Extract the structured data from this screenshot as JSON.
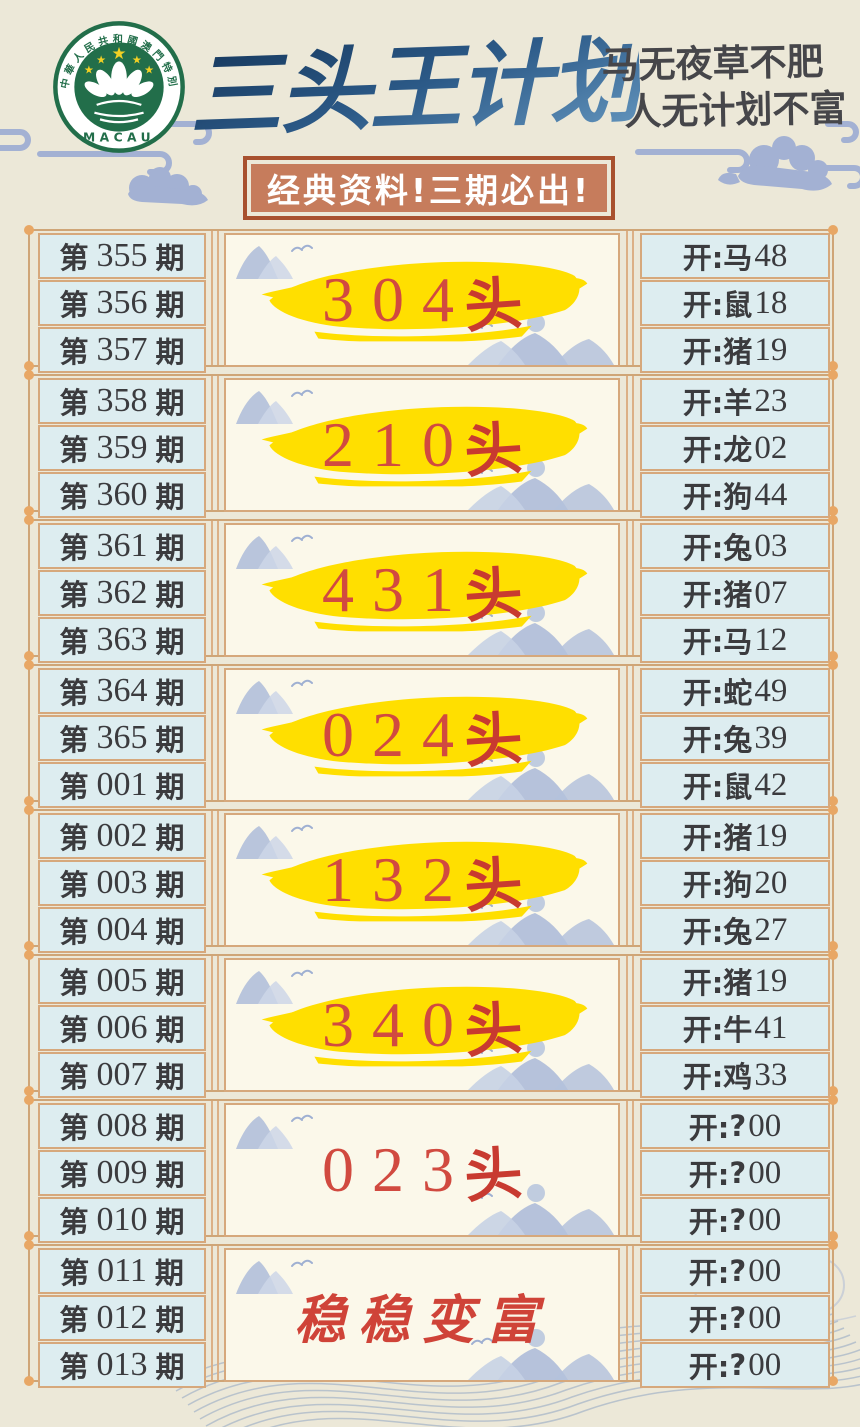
{
  "header": {
    "title": "三头王计划",
    "slogan_line1": "马无夜草不肥",
    "slogan_line2": "人无计划不富",
    "banner": "经典资料!三期必出!",
    "logo_ring_text": "中華人民共和國澳門特別行政區",
    "logo_bottom_text": "MACAU"
  },
  "labels": {
    "period_prefix": "第",
    "period_suffix": "期",
    "result_prefix": "开:"
  },
  "colors": {
    "page_background": "#ece8d8",
    "cell_blue": "#ddedf0",
    "frame_tan": "#d6a87c",
    "accent_red": "#d14a40",
    "highlight_yellow": "#ffdf00",
    "banner_fill": "#c67c5c",
    "banner_border": "#a8512f",
    "title_blue": "#2b5685",
    "cloud_blue": "#a3b1d3"
  },
  "blocks": [
    {
      "periods": [
        "355",
        "356",
        "357"
      ],
      "plan": {
        "digits": "304",
        "suffix": "头",
        "text": "",
        "highlight": true
      },
      "results": [
        {
          "zodiac": "马",
          "num": "48"
        },
        {
          "zodiac": "鼠",
          "num": "18"
        },
        {
          "zodiac": "猪",
          "num": "19"
        }
      ]
    },
    {
      "periods": [
        "358",
        "359",
        "360"
      ],
      "plan": {
        "digits": "210",
        "suffix": "头",
        "text": "",
        "highlight": true
      },
      "results": [
        {
          "zodiac": "羊",
          "num": "23"
        },
        {
          "zodiac": "龙",
          "num": "02"
        },
        {
          "zodiac": "狗",
          "num": "44"
        }
      ]
    },
    {
      "periods": [
        "361",
        "362",
        "363"
      ],
      "plan": {
        "digits": "431",
        "suffix": "头",
        "text": "",
        "highlight": true
      },
      "results": [
        {
          "zodiac": "兔",
          "num": "03"
        },
        {
          "zodiac": "猪",
          "num": "07"
        },
        {
          "zodiac": "马",
          "num": "12"
        }
      ]
    },
    {
      "periods": [
        "364",
        "365",
        "001"
      ],
      "plan": {
        "digits": "024",
        "suffix": "头",
        "text": "",
        "highlight": true
      },
      "results": [
        {
          "zodiac": "蛇",
          "num": "49"
        },
        {
          "zodiac": "兔",
          "num": "39"
        },
        {
          "zodiac": "鼠",
          "num": "42"
        }
      ]
    },
    {
      "periods": [
        "002",
        "003",
        "004"
      ],
      "plan": {
        "digits": "132",
        "suffix": "头",
        "text": "",
        "highlight": true
      },
      "results": [
        {
          "zodiac": "猪",
          "num": "19"
        },
        {
          "zodiac": "狗",
          "num": "20"
        },
        {
          "zodiac": "兔",
          "num": "27"
        }
      ]
    },
    {
      "periods": [
        "005",
        "006",
        "007"
      ],
      "plan": {
        "digits": "340",
        "suffix": "头",
        "text": "",
        "highlight": true
      },
      "results": [
        {
          "zodiac": "猪",
          "num": "19"
        },
        {
          "zodiac": "牛",
          "num": "41"
        },
        {
          "zodiac": "鸡",
          "num": "33"
        }
      ]
    },
    {
      "periods": [
        "008",
        "009",
        "010"
      ],
      "plan": {
        "digits": "023",
        "suffix": "头",
        "text": "",
        "highlight": false
      },
      "results": [
        {
          "zodiac": "?",
          "num": "00"
        },
        {
          "zodiac": "?",
          "num": "00"
        },
        {
          "zodiac": "?",
          "num": "00"
        }
      ]
    },
    {
      "periods": [
        "011",
        "012",
        "013"
      ],
      "plan": {
        "digits": "",
        "suffix": "",
        "text": "稳稳变富",
        "highlight": false
      },
      "results": [
        {
          "zodiac": "?",
          "num": "00"
        },
        {
          "zodiac": "?",
          "num": "00"
        },
        {
          "zodiac": "?",
          "num": "00"
        }
      ]
    }
  ]
}
